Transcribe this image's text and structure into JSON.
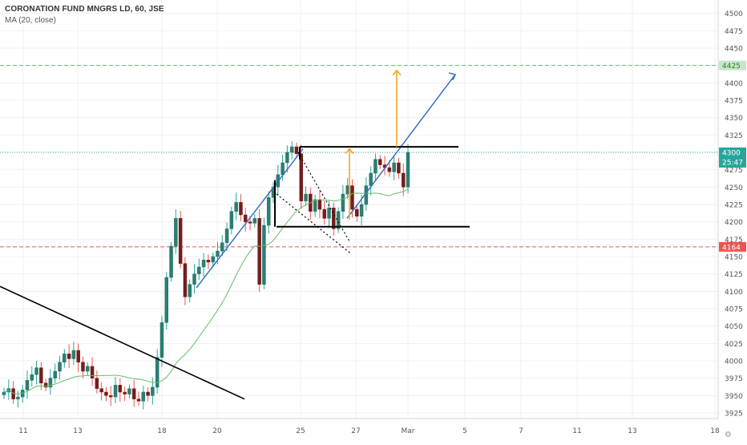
{
  "header": {
    "title": "CORONATION FUND MNGRS LD, 60, JSE",
    "indicator": "MA (20, close)"
  },
  "chart_data": {
    "type": "candlestick",
    "title": "CORONATION FUND MNGRS LD, 60, JSE",
    "indicator": "MA (20, close)",
    "ylim": [
      3915,
      4515
    ],
    "y_ticks": [
      "3925",
      "3950",
      "3975",
      "4000",
      "4025",
      "4050",
      "4075",
      "4100",
      "4125",
      "4150",
      "4175",
      "4200",
      "4225",
      "4250",
      "4275",
      "4300",
      "4325",
      "4350",
      "4375",
      "4400",
      "4425",
      "4450",
      "4475",
      "4500"
    ],
    "x_labels": [
      "11",
      "13",
      "18",
      "20",
      "25",
      "27",
      "Mar",
      "5",
      "7",
      "11",
      "13",
      "18"
    ],
    "price_labels": {
      "last_price": "4300",
      "countdown": "25:47",
      "support_line": "4164",
      "target_line": "4425"
    },
    "close_series": [
      3955,
      3960,
      3945,
      3948,
      3958,
      3972,
      3980,
      3990,
      3968,
      3962,
      3975,
      3985,
      3998,
      4010,
      4003,
      4015,
      3998,
      3985,
      3992,
      3975,
      3960,
      3955,
      3950,
      3948,
      3965,
      3955,
      3952,
      3960,
      3945,
      3942,
      3955,
      3950,
      3962,
      4005,
      4055,
      4120,
      4165,
      4205,
      4140,
      4092,
      4110,
      4125,
      4135,
      4145,
      4142,
      4150,
      4158,
      4170,
      4190,
      4215,
      4228,
      4210,
      4200,
      4198,
      4205,
      4110,
      4195,
      4235,
      4250,
      4268,
      4285,
      4300,
      4308,
      4298,
      4230,
      4240,
      4215,
      4232,
      4218,
      4205,
      4220,
      4190,
      4215,
      4240,
      4252,
      4218,
      4208,
      4225,
      4252,
      4270,
      4290,
      4282,
      4278,
      4272,
      4285,
      4270,
      4250,
      4300
    ],
    "series": [
      {
        "name": "CORONATION FUND MNGRS LD",
        "color_up": "#26a69a",
        "color_down": "#ef5350"
      },
      {
        "name": "MA (20, close)",
        "color": "#4caf50"
      }
    ],
    "annotations": {
      "horizontal_levels": [
        4425,
        4300,
        4164
      ],
      "resistance_level": 4308,
      "support_level": 4193,
      "colors": {
        "trendline": "#000000",
        "channel": "#3a6fc4",
        "arrow": "#f5a623",
        "target": "#4caf50",
        "stop": "#ef5350",
        "price": "#26a69a"
      }
    }
  }
}
